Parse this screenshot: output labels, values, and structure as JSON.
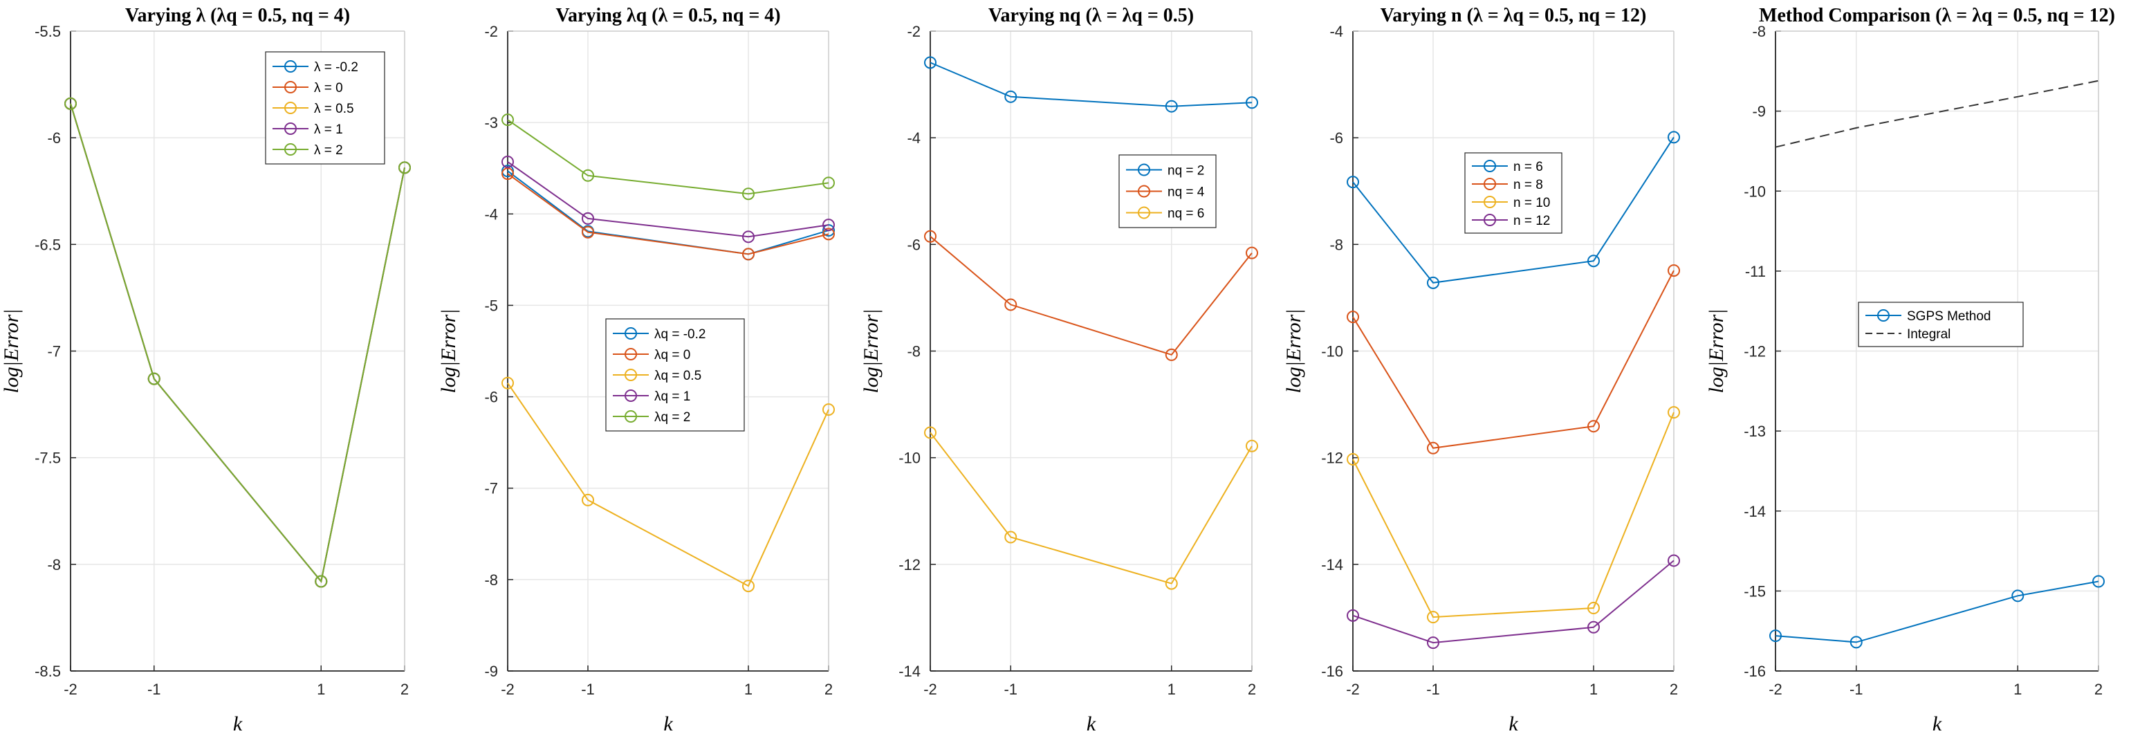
{
  "chart_data": [
    {
      "type": "line",
      "title": "Varying λ (λq = 0.5, nq = 4)",
      "xlabel": "k",
      "ylabel": "log|Error|",
      "x": [
        -2,
        -1,
        1,
        2
      ],
      "xticks": [
        "-2",
        "-1",
        "1",
        "2"
      ],
      "xlim": [
        -2,
        2
      ],
      "ylim": [
        -8.5,
        -5.5
      ],
      "yticks": [
        "-8.5",
        "-8",
        "-7.5",
        "-7",
        "-6.5",
        "-6",
        "-5.5"
      ],
      "grid": true,
      "legend_position": "top-right",
      "series": [
        {
          "name": "λ = -0.2",
          "color": "#0072BD",
          "marker": true,
          "dash": false,
          "values": [
            -5.84,
            -7.13,
            -8.08,
            -6.14
          ]
        },
        {
          "name": "λ = 0",
          "color": "#D95319",
          "marker": true,
          "dash": false,
          "values": [
            -5.84,
            -7.13,
            -8.08,
            -6.14
          ]
        },
        {
          "name": "λ = 0.5",
          "color": "#EDB120",
          "marker": true,
          "dash": false,
          "values": [
            -5.84,
            -7.13,
            -8.08,
            -6.14
          ]
        },
        {
          "name": "λ = 1",
          "color": "#7E2F8E",
          "marker": true,
          "dash": false,
          "values": [
            -5.84,
            -7.13,
            -8.08,
            -6.14
          ]
        },
        {
          "name": "λ = 2",
          "color": "#77AC30",
          "marker": true,
          "dash": false,
          "values": [
            -5.84,
            -7.13,
            -8.08,
            -6.14
          ]
        }
      ]
    },
    {
      "type": "line",
      "title": "Varying λq (λ = 0.5, nq = 4)",
      "xlabel": "k",
      "ylabel": "log|Error|",
      "x": [
        -2,
        -1,
        1,
        2
      ],
      "xticks": [
        "-2",
        "-1",
        "1",
        "2"
      ],
      "xlim": [
        -2,
        2
      ],
      "ylim": [
        -9,
        -2
      ],
      "yticks": [
        "-9",
        "-8",
        "-7",
        "-6",
        "-5",
        "-4",
        "-3",
        "-2"
      ],
      "grid": true,
      "legend_position": "center",
      "series": [
        {
          "name": "λq = -0.2",
          "color": "#0072BD",
          "marker": true,
          "dash": false,
          "values": [
            -3.53,
            -4.19,
            -4.44,
            -4.18
          ]
        },
        {
          "name": "λq = 0",
          "color": "#D95319",
          "marker": true,
          "dash": false,
          "values": [
            -3.56,
            -4.2,
            -4.44,
            -4.22
          ]
        },
        {
          "name": "λq = 0.5",
          "color": "#EDB120",
          "marker": true,
          "dash": false,
          "values": [
            -5.85,
            -7.13,
            -8.07,
            -6.14
          ]
        },
        {
          "name": "λq = 1",
          "color": "#7E2F8E",
          "marker": true,
          "dash": false,
          "values": [
            -3.43,
            -4.05,
            -4.25,
            -4.12
          ]
        },
        {
          "name": "λq = 2",
          "color": "#77AC30",
          "marker": true,
          "dash": false,
          "values": [
            -2.97,
            -3.58,
            -3.78,
            -3.66
          ]
        }
      ]
    },
    {
      "type": "line",
      "title": "Varying nq (λ = λq = 0.5)",
      "xlabel": "k",
      "ylabel": "log|Error|",
      "x": [
        -2,
        -1,
        1,
        2
      ],
      "xticks": [
        "-2",
        "-1",
        "1",
        "2"
      ],
      "xlim": [
        -2,
        2
      ],
      "ylim": [
        -14,
        -2
      ],
      "yticks": [
        "-14",
        "-12",
        "-10",
        "-8",
        "-6",
        "-4",
        "-2"
      ],
      "grid": true,
      "legend_position": "top-right",
      "series": [
        {
          "name": "nq = 2",
          "color": "#0072BD",
          "marker": true,
          "dash": false,
          "values": [
            -2.59,
            -3.23,
            -3.41,
            -3.34
          ]
        },
        {
          "name": "nq = 4",
          "color": "#D95319",
          "marker": true,
          "dash": false,
          "values": [
            -5.85,
            -7.13,
            -8.07,
            -6.16
          ]
        },
        {
          "name": "nq = 6",
          "color": "#EDB120",
          "marker": true,
          "dash": false,
          "values": [
            -9.53,
            -11.49,
            -12.36,
            -9.78
          ]
        }
      ]
    },
    {
      "type": "line",
      "title": "Varying n (λ = λq = 0.5, nq = 12)",
      "xlabel": "k",
      "ylabel": "log|Error|",
      "x": [
        -2,
        -1,
        1,
        2
      ],
      "xticks": [
        "-2",
        "-1",
        "1",
        "2"
      ],
      "xlim": [
        -2,
        2
      ],
      "ylim": [
        -16,
        -4
      ],
      "yticks": [
        "-16",
        "-14",
        "-12",
        "-10",
        "-8",
        "-6",
        "-4"
      ],
      "grid": true,
      "legend_position": "top-center",
      "series": [
        {
          "name": "n = 6",
          "color": "#0072BD",
          "marker": true,
          "dash": false,
          "values": [
            -6.83,
            -8.72,
            -8.31,
            -5.99
          ]
        },
        {
          "name": "n = 8",
          "color": "#D95319",
          "marker": true,
          "dash": false,
          "values": [
            -9.36,
            -11.82,
            -11.41,
            -8.49
          ]
        },
        {
          "name": "n = 10",
          "color": "#EDB120",
          "marker": true,
          "dash": false,
          "values": [
            -12.03,
            -14.99,
            -14.82,
            -11.15
          ]
        },
        {
          "name": "n = 12",
          "color": "#7E2F8E",
          "marker": true,
          "dash": false,
          "values": [
            -14.96,
            -15.47,
            -15.18,
            -13.93
          ]
        }
      ]
    },
    {
      "type": "line",
      "title": "Method Comparison (λ = λq = 0.5, nq = 12)",
      "xlabel": "k",
      "ylabel": "log|Error|",
      "x": [
        -2,
        -1,
        1,
        2
      ],
      "xticks": [
        "-2",
        "-1",
        "1",
        "2"
      ],
      "xlim": [
        -2,
        2
      ],
      "ylim": [
        -16,
        -8
      ],
      "yticks": [
        "-16",
        "-15",
        "-14",
        "-13",
        "-12",
        "-11",
        "-10",
        "-9",
        "-8"
      ],
      "grid": true,
      "legend_position": "center",
      "series": [
        {
          "name": "SGPS Method",
          "color": "#0072BD",
          "marker": true,
          "dash": false,
          "values": [
            -15.56,
            -15.64,
            -15.06,
            -14.88
          ]
        },
        {
          "name": "Integral",
          "color": "#333333",
          "marker": false,
          "dash": true,
          "values": [
            -9.45,
            -9.21,
            -8.82,
            -8.62
          ]
        }
      ]
    }
  ]
}
